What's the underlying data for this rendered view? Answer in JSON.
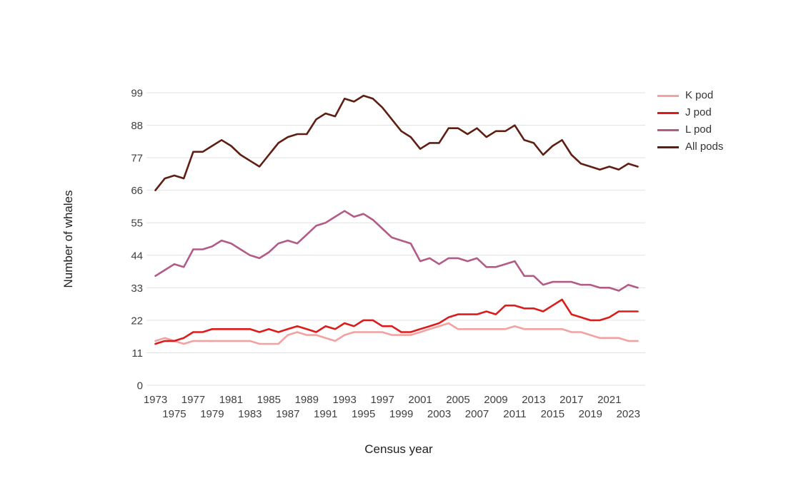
{
  "chart": {
    "y_axis_title": "Number of whales",
    "x_axis_title": "Census year"
  },
  "chart_data": {
    "type": "line",
    "title": "",
    "xlabel": "Census year",
    "ylabel": "Number of whales",
    "grid": "horizontal",
    "legend_position": "top-right",
    "background_color": "#ffffff",
    "gridline_color": "#e2e2e2",
    "tick_label_color": "#3f3f3f",
    "axis_title_color": "#212121",
    "ylim": [
      0,
      104
    ],
    "xlim": [
      1972,
      2025
    ],
    "y_ticks": [
      0,
      11,
      22,
      33,
      44,
      55,
      66,
      77,
      88,
      99
    ],
    "x_tick_rows": [
      [
        1973,
        1977,
        1981,
        1985,
        1989,
        1993,
        1997,
        2001,
        2005,
        2009,
        2013,
        2017,
        2021
      ],
      [
        1975,
        1979,
        1983,
        1987,
        1991,
        1995,
        1999,
        2003,
        2007,
        2011,
        2015,
        2019,
        2023
      ]
    ],
    "x": [
      1973,
      1974,
      1975,
      1976,
      1977,
      1978,
      1979,
      1980,
      1981,
      1982,
      1983,
      1984,
      1985,
      1986,
      1987,
      1988,
      1989,
      1990,
      1991,
      1992,
      1993,
      1994,
      1995,
      1996,
      1997,
      1998,
      1999,
      2000,
      2001,
      2002,
      2003,
      2004,
      2005,
      2006,
      2007,
      2008,
      2009,
      2010,
      2011,
      2012,
      2013,
      2014,
      2015,
      2016,
      2017,
      2018,
      2019,
      2020,
      2021,
      2022,
      2023,
      2024
    ],
    "series": [
      {
        "name": "K pod",
        "color": "#f2a2a0",
        "values": [
          15,
          16,
          15,
          14,
          15,
          15,
          15,
          15,
          15,
          15,
          15,
          14,
          14,
          14,
          17,
          18,
          17,
          17,
          16,
          15,
          17,
          18,
          18,
          18,
          18,
          17,
          17,
          17,
          18,
          19,
          20,
          21,
          19,
          19,
          19,
          19,
          19,
          19,
          20,
          19,
          19,
          19,
          19,
          19,
          18,
          18,
          17,
          16,
          16,
          16,
          15,
          15
        ]
      },
      {
        "name": "J pod",
        "color": "#de1b1b",
        "values": [
          14,
          15,
          15,
          16,
          18,
          18,
          19,
          19,
          19,
          19,
          19,
          18,
          19,
          18,
          19,
          20,
          19,
          18,
          20,
          19,
          21,
          20,
          22,
          22,
          20,
          20,
          18,
          18,
          19,
          20,
          21,
          23,
          24,
          24,
          24,
          25,
          24,
          27,
          27,
          26,
          26,
          25,
          27,
          29,
          24,
          23,
          22,
          22,
          23,
          25,
          25,
          25
        ]
      },
      {
        "name": "L pod",
        "color": "#b25b87",
        "values": [
          37,
          39,
          41,
          40,
          46,
          46,
          47,
          49,
          48,
          46,
          44,
          43,
          45,
          48,
          49,
          48,
          51,
          54,
          55,
          57,
          59,
          57,
          58,
          56,
          53,
          50,
          49,
          48,
          42,
          43,
          41,
          43,
          43,
          42,
          43,
          40,
          40,
          41,
          42,
          37,
          37,
          34,
          35,
          35,
          35,
          34,
          34,
          33,
          33,
          32,
          34,
          33
        ]
      },
      {
        "name": "All pods",
        "color": "#5e1f12",
        "values": [
          66,
          70,
          71,
          70,
          79,
          79,
          81,
          83,
          81,
          78,
          76,
          74,
          78,
          82,
          84,
          85,
          85,
          90,
          92,
          91,
          97,
          96,
          98,
          97,
          94,
          90,
          86,
          84,
          80,
          82,
          82,
          87,
          87,
          85,
          87,
          84,
          86,
          86,
          88,
          83,
          82,
          78,
          81,
          83,
          78,
          75,
          74,
          73,
          74,
          73,
          75,
          74
        ]
      }
    ],
    "legend_order": [
      "K pod",
      "J pod",
      "L pod",
      "All pods"
    ]
  }
}
